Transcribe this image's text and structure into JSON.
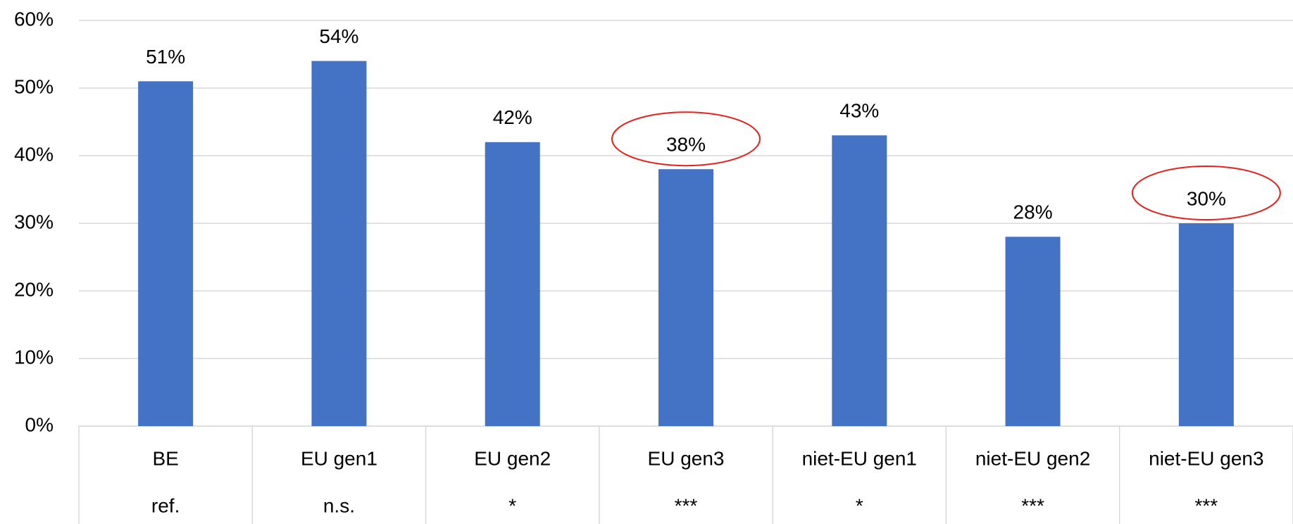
{
  "chart_data": {
    "type": "bar",
    "categories": [
      "BE",
      "EU gen1",
      "EU gen2",
      "EU gen3",
      "niet-EU gen1",
      "niet-EU gen2",
      "niet-EU gen3"
    ],
    "significance": [
      "ref.",
      "n.s.",
      "*",
      "***",
      "*",
      "***",
      "***"
    ],
    "values": [
      51,
      54,
      42,
      38,
      43,
      28,
      30
    ],
    "value_labels": [
      "51%",
      "54%",
      "42%",
      "38%",
      "43%",
      "28%",
      "30%"
    ],
    "color": "#4472c4",
    "highlight": [
      3,
      6
    ],
    "highlight_color": "#e8211d",
    "ylim": [
      0,
      60
    ],
    "yticks": [
      {
        "value": 0,
        "label": "0%"
      },
      {
        "value": 10,
        "label": "10%"
      },
      {
        "value": 20,
        "label": "20%"
      },
      {
        "value": 30,
        "label": "30%"
      },
      {
        "value": 40,
        "label": "40%"
      },
      {
        "value": 50,
        "label": "50%"
      },
      {
        "value": 60,
        "label": "60%"
      }
    ],
    "grid": true
  }
}
